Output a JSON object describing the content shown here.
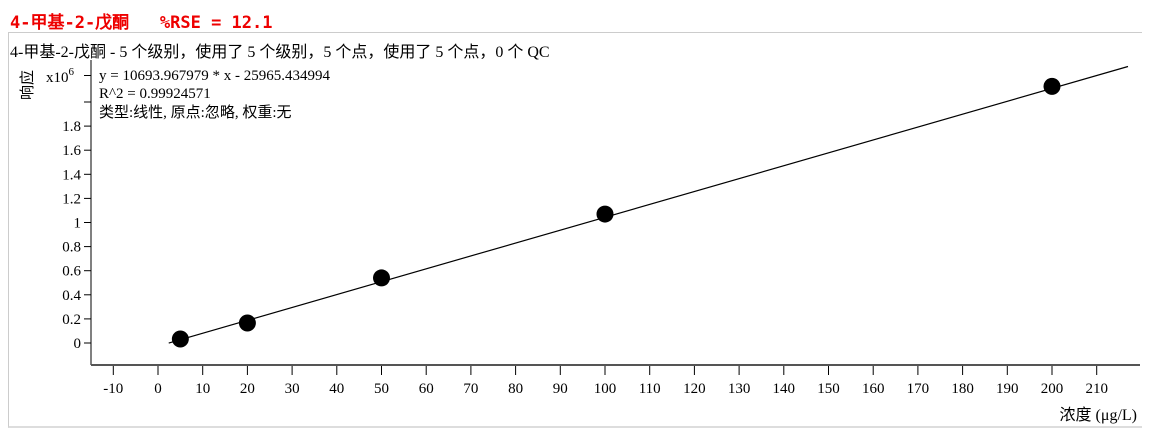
{
  "header": {
    "title": "4-甲基-2-戊酮",
    "rse": "%RSE = 12.1"
  },
  "chart_data": {
    "type": "scatter",
    "subtitle": "4-甲基-2-戊酮 - 5 个级别，使用了 5 个级别，5 个点，使用了 5 个点，0 个 QC",
    "equation": "y = 10693.967979 * x  - 25965.434994",
    "r2": "R^2 = 0.99924571",
    "fit_info": "类型:线性, 原点:忽略, 权重:无",
    "ylabel": "响应",
    "y_multiplier": "x10^6",
    "xlabel": "浓度 (μg/L)",
    "xlim": [
      -13,
      220
    ],
    "ylim": [
      -0.18,
      2.35
    ],
    "x_ticks": [
      -10,
      0,
      10,
      20,
      30,
      40,
      50,
      60,
      70,
      80,
      90,
      100,
      110,
      120,
      130,
      140,
      150,
      160,
      170,
      180,
      190,
      200,
      210
    ],
    "y_ticks": [
      0,
      0.2,
      0.4,
      0.6,
      0.8,
      1,
      1.2,
      1.4,
      1.6,
      1.8
    ],
    "y_tick_labels": [
      "0",
      "0.2",
      "0.4",
      "0.6",
      "0.8",
      "1",
      "1.2",
      "1.4",
      "1.6",
      "1.8"
    ],
    "points": [
      {
        "x": 5,
        "y": 0.033
      },
      {
        "x": 20,
        "y": 0.166
      },
      {
        "x": 50,
        "y": 0.54
      },
      {
        "x": 100,
        "y": 1.07
      },
      {
        "x": 200,
        "y": 2.13
      }
    ],
    "fit": {
      "slope": 10693.967979,
      "intercept": -25965.434994,
      "x_range": [
        2.4,
        217
      ]
    },
    "grid": false
  }
}
